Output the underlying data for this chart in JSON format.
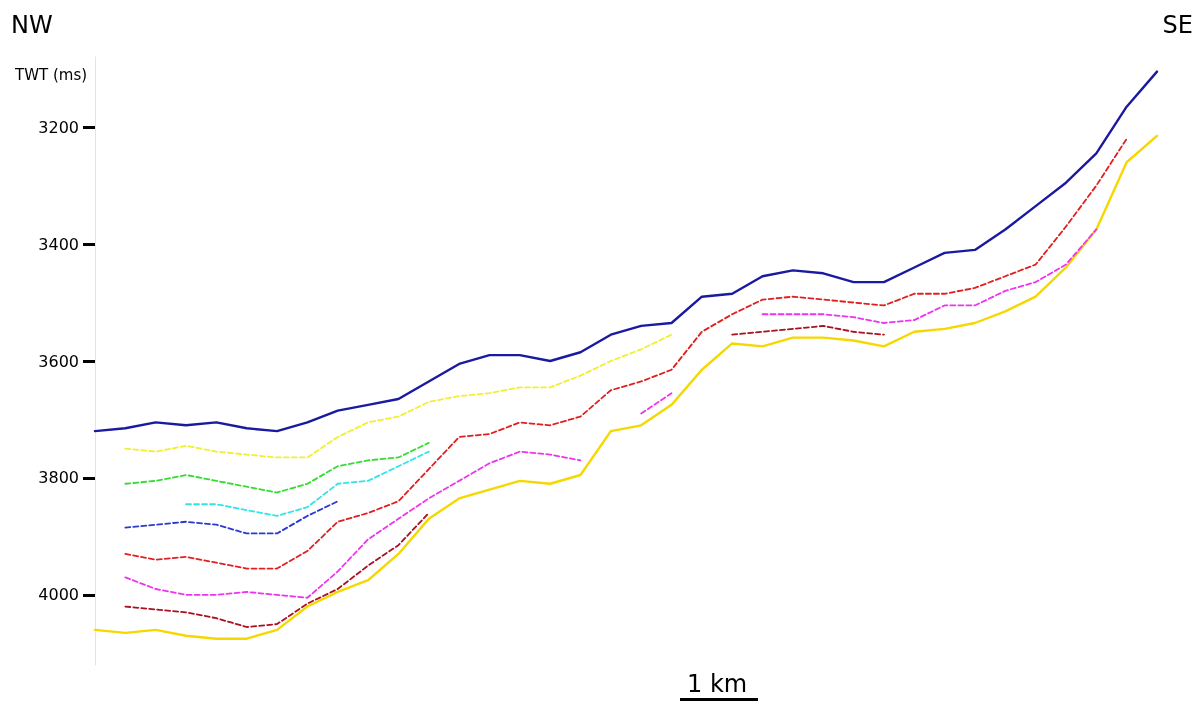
{
  "chart_data": {
    "type": "line",
    "ylabel": "TWT (ms)",
    "annotations": [
      "NW",
      "SE",
      "1 km"
    ],
    "categories": [
      null,
      null,
      null,
      null,
      null,
      null,
      null,
      null,
      null,
      null,
      null,
      null,
      null,
      null,
      null,
      null,
      null,
      null,
      null,
      null,
      null,
      null,
      null,
      null,
      null,
      null,
      null,
      null,
      null,
      null,
      null,
      null,
      null,
      null,
      null,
      null
    ],
    "ylim": [
      4120,
      3080
    ],
    "yticks": [
      3200,
      3400,
      3600,
      3800,
      4000
    ],
    "grid": false,
    "tick_labels": "y",
    "marker": "none",
    "series": [
      {
        "color": "#1a1aa0",
        "line_style": "solid",
        "values": [
          3720,
          3715,
          3705,
          3710,
          3705,
          3715,
          3720,
          3705,
          3685,
          3675,
          3665,
          3635,
          3605,
          3590,
          3590,
          3600,
          3585,
          3555,
          3540,
          3535,
          3490,
          3485,
          3455,
          3445,
          3450,
          3465,
          3465,
          3440,
          3415,
          3410,
          3375,
          3335,
          3295,
          3245,
          3165,
          3105
        ]
      },
      {
        "color": "#f0f030",
        "line_style": "dashed",
        "values": [
          null,
          3750,
          3755,
          3745,
          3755,
          3760,
          3765,
          3765,
          3730,
          3705,
          3695,
          3670,
          3660,
          3655,
          3645,
          3645,
          3625,
          3600,
          3580,
          3555,
          null,
          null,
          null,
          null,
          null,
          null,
          null,
          null,
          null,
          null,
          null,
          null,
          null,
          null,
          null,
          null
        ]
      },
      {
        "color": "#33dd33",
        "line_style": "dashed",
        "values": [
          null,
          3810,
          3805,
          3795,
          3805,
          3815,
          3825,
          3810,
          3780,
          3770,
          3765,
          3740,
          null,
          null,
          null,
          null,
          null,
          null,
          null,
          null,
          null,
          null,
          null,
          null,
          null,
          null,
          null,
          null,
          null,
          null,
          null,
          null,
          null,
          null,
          null,
          null
        ]
      },
      {
        "color": "#33e5e5",
        "line_style": "dashed",
        "values": [
          null,
          null,
          null,
          3845,
          3845,
          3855,
          3865,
          3850,
          3810,
          3805,
          3780,
          3755,
          null,
          null,
          null,
          null,
          null,
          null,
          null,
          null,
          null,
          null,
          null,
          null,
          null,
          null,
          null,
          null,
          null,
          null,
          null,
          null,
          null,
          null,
          null,
          null
        ]
      },
      {
        "color": "#2a3ad0",
        "line_style": "dashed",
        "values": [
          null,
          3885,
          3880,
          3875,
          3880,
          3895,
          3895,
          3865,
          3840,
          null,
          null,
          null,
          null,
          null,
          null,
          null,
          null,
          null,
          null,
          null,
          null,
          null,
          null,
          null,
          null,
          null,
          null,
          null,
          null,
          null,
          null,
          null,
          null,
          null,
          null,
          null
        ]
      },
      {
        "color": "#e02020",
        "line_style": "dashed",
        "values": [
          null,
          3930,
          3940,
          3935,
          3945,
          3955,
          3955,
          3925,
          3875,
          3860,
          3840,
          3785,
          3730,
          3725,
          3705,
          3710,
          3695,
          3650,
          3635,
          3615,
          3550,
          3520,
          3495,
          3490,
          3495,
          3500,
          3505,
          3485,
          3485,
          3475,
          3455,
          3435,
          3370,
          3300,
          3220,
          null
        ]
      },
      {
        "color": "#ee33ee",
        "line_style": "dashed",
        "values": [
          null,
          3970,
          3990,
          4000,
          4000,
          3995,
          4000,
          4005,
          3960,
          3905,
          3870,
          3835,
          3805,
          3775,
          3755,
          3760,
          3770,
          null,
          3690,
          3655,
          null,
          null,
          3520,
          3520,
          3520,
          3525,
          3535,
          3530,
          3505,
          3505,
          3480,
          3465,
          3435,
          3375,
          null,
          null
        ]
      },
      {
        "color": "#aa1020",
        "line_style": "dashed",
        "values": [
          null,
          4020,
          4025,
          4030,
          4040,
          4055,
          4050,
          4015,
          3990,
          3950,
          3915,
          3860,
          null,
          null,
          null,
          null,
          null,
          null,
          null,
          null,
          null,
          3555,
          3550,
          3545,
          3540,
          3550,
          3555,
          null,
          null,
          null,
          null,
          null,
          null,
          null,
          null,
          null
        ]
      },
      {
        "color": "#f5d800",
        "line_style": "solid",
        "values": [
          4060,
          4065,
          4060,
          4070,
          4075,
          4075,
          4060,
          4020,
          3995,
          3975,
          3930,
          3870,
          3835,
          3820,
          3805,
          3810,
          3795,
          3720,
          3710,
          3675,
          3615,
          3570,
          3575,
          3560,
          3560,
          3565,
          3575,
          3550,
          3545,
          3535,
          3515,
          3490,
          3440,
          3375,
          3260,
          3215
        ]
      }
    ]
  }
}
